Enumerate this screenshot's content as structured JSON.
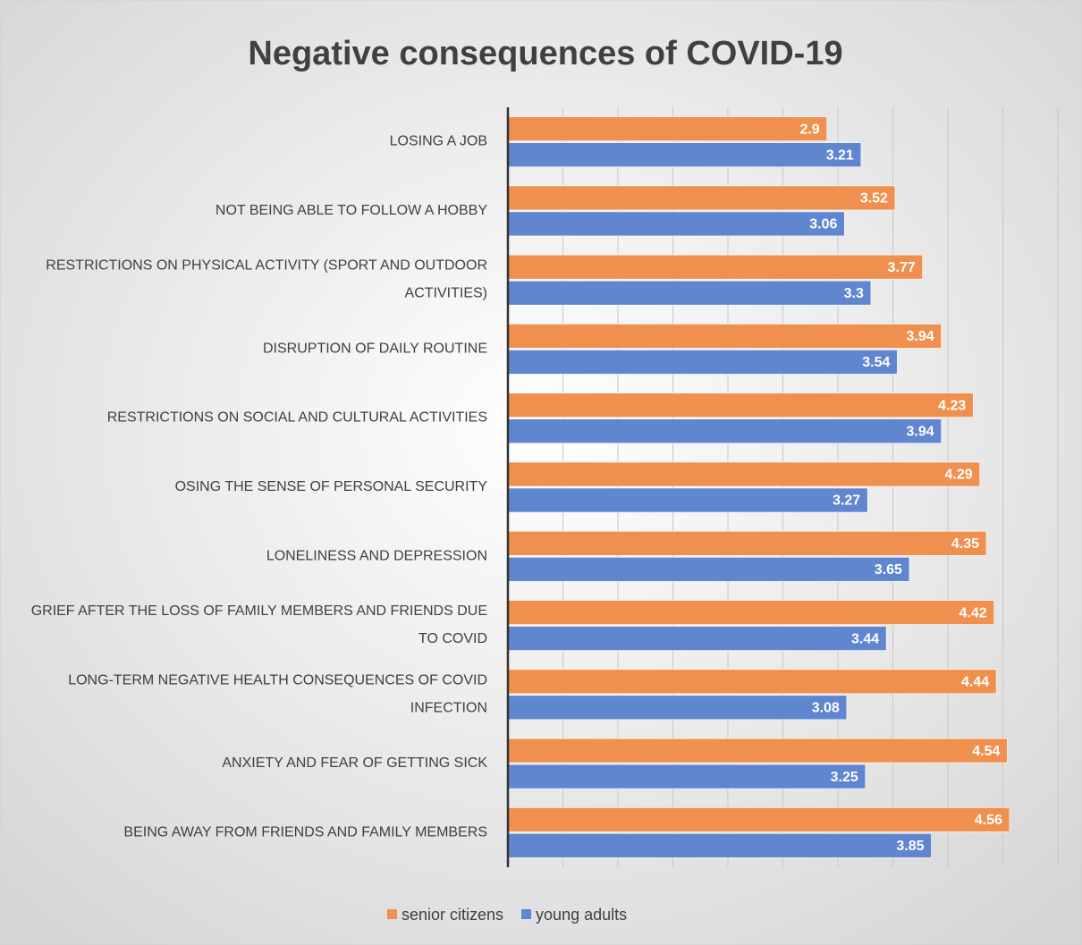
{
  "chart_data": {
    "type": "hbar",
    "title": "Negative consequences of COVID-19",
    "categories": [
      "LOSING A JOB",
      "NOT BEING ABLE TO FOLLOW A HOBBY",
      "RESTRICTIONS ON PHYSICAL ACTIVITY (SPORT AND OUTDOOR ACTIVITIES)",
      "DISRUPTION OF DAILY ROUTINE",
      "RESTRICTIONS ON SOCIAL AND CULTURAL ACTIVITIES",
      "OSING THE SENSE OF PERSONAL SECURITY",
      "LONELINESS AND DEPRESSION",
      "GRIEF AFTER THE LOSS OF FAMILY MEMBERS AND FRIENDS DUE TO COVID",
      "LONG-TERM NEGATIVE HEALTH CONSEQUENCES OF COVID INFECTION",
      "ANXIETY AND FEAR OF GETTING SICK",
      "BEING AWAY FROM FRIENDS AND FAMILY MEMBERS"
    ],
    "series": [
      {
        "name": "senior citizens",
        "color": "#f0904f",
        "values": [
          2.9,
          3.52,
          3.77,
          3.94,
          4.23,
          4.29,
          4.35,
          4.42,
          4.44,
          4.54,
          4.56
        ]
      },
      {
        "name": "young adults",
        "color": "#5f86cf",
        "values": [
          3.21,
          3.06,
          3.3,
          3.54,
          3.94,
          3.27,
          3.65,
          3.44,
          3.08,
          3.25,
          3.85
        ]
      }
    ],
    "xlim": [
      0,
      5
    ],
    "xticks": [
      0,
      0.5,
      1,
      1.5,
      2,
      2.5,
      3,
      3.5,
      4,
      4.5,
      5
    ],
    "grid": true,
    "legend": "bottom"
  }
}
